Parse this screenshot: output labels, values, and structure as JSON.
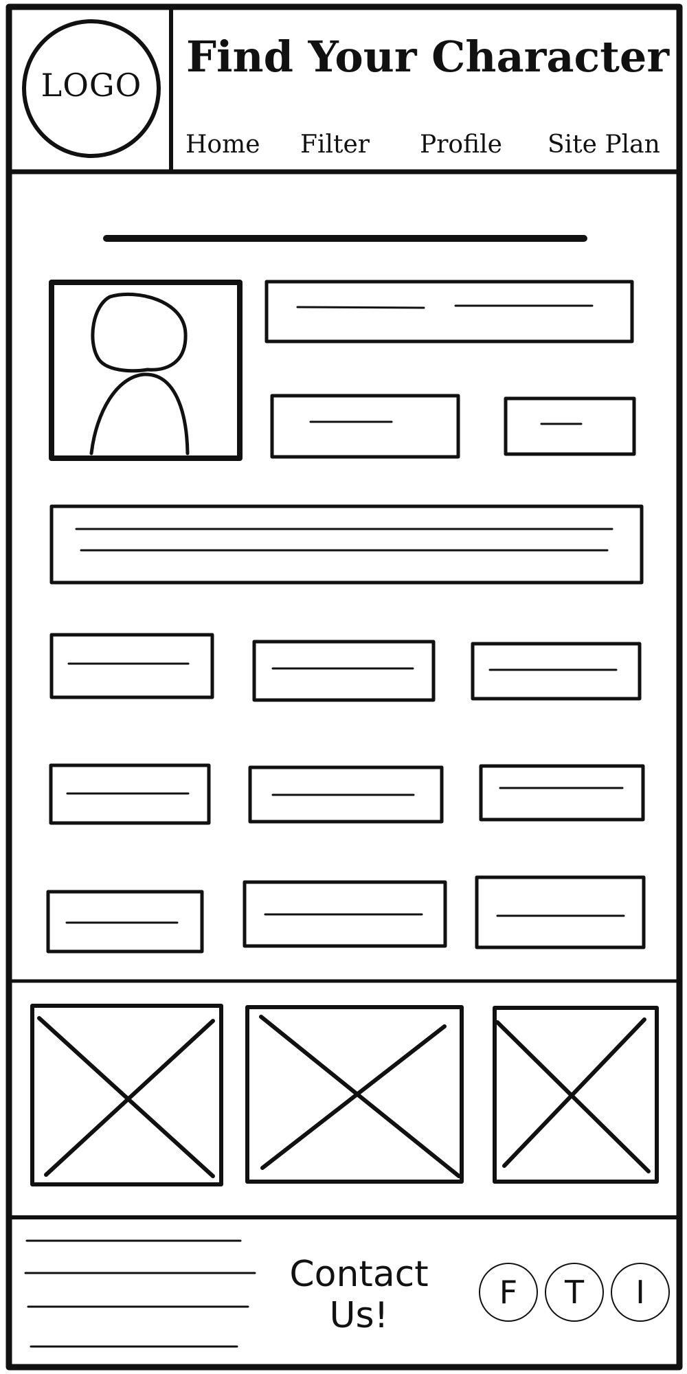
{
  "header": {
    "logo_text": "LOGO",
    "title": "Find Your Character"
  },
  "nav": {
    "items": [
      {
        "label": "Home"
      },
      {
        "label": "Filter"
      },
      {
        "label": "Profile"
      },
      {
        "label": "Site Plan"
      }
    ]
  },
  "footer": {
    "contact_label": "Contact Us!",
    "social": [
      {
        "letter": "F",
        "icon": "facebook-icon"
      },
      {
        "letter": "T",
        "icon": "twitter-icon"
      },
      {
        "letter": "I",
        "icon": "instagram-icon"
      }
    ]
  },
  "colors": {
    "stroke": "#111111",
    "background": "#ffffff"
  }
}
